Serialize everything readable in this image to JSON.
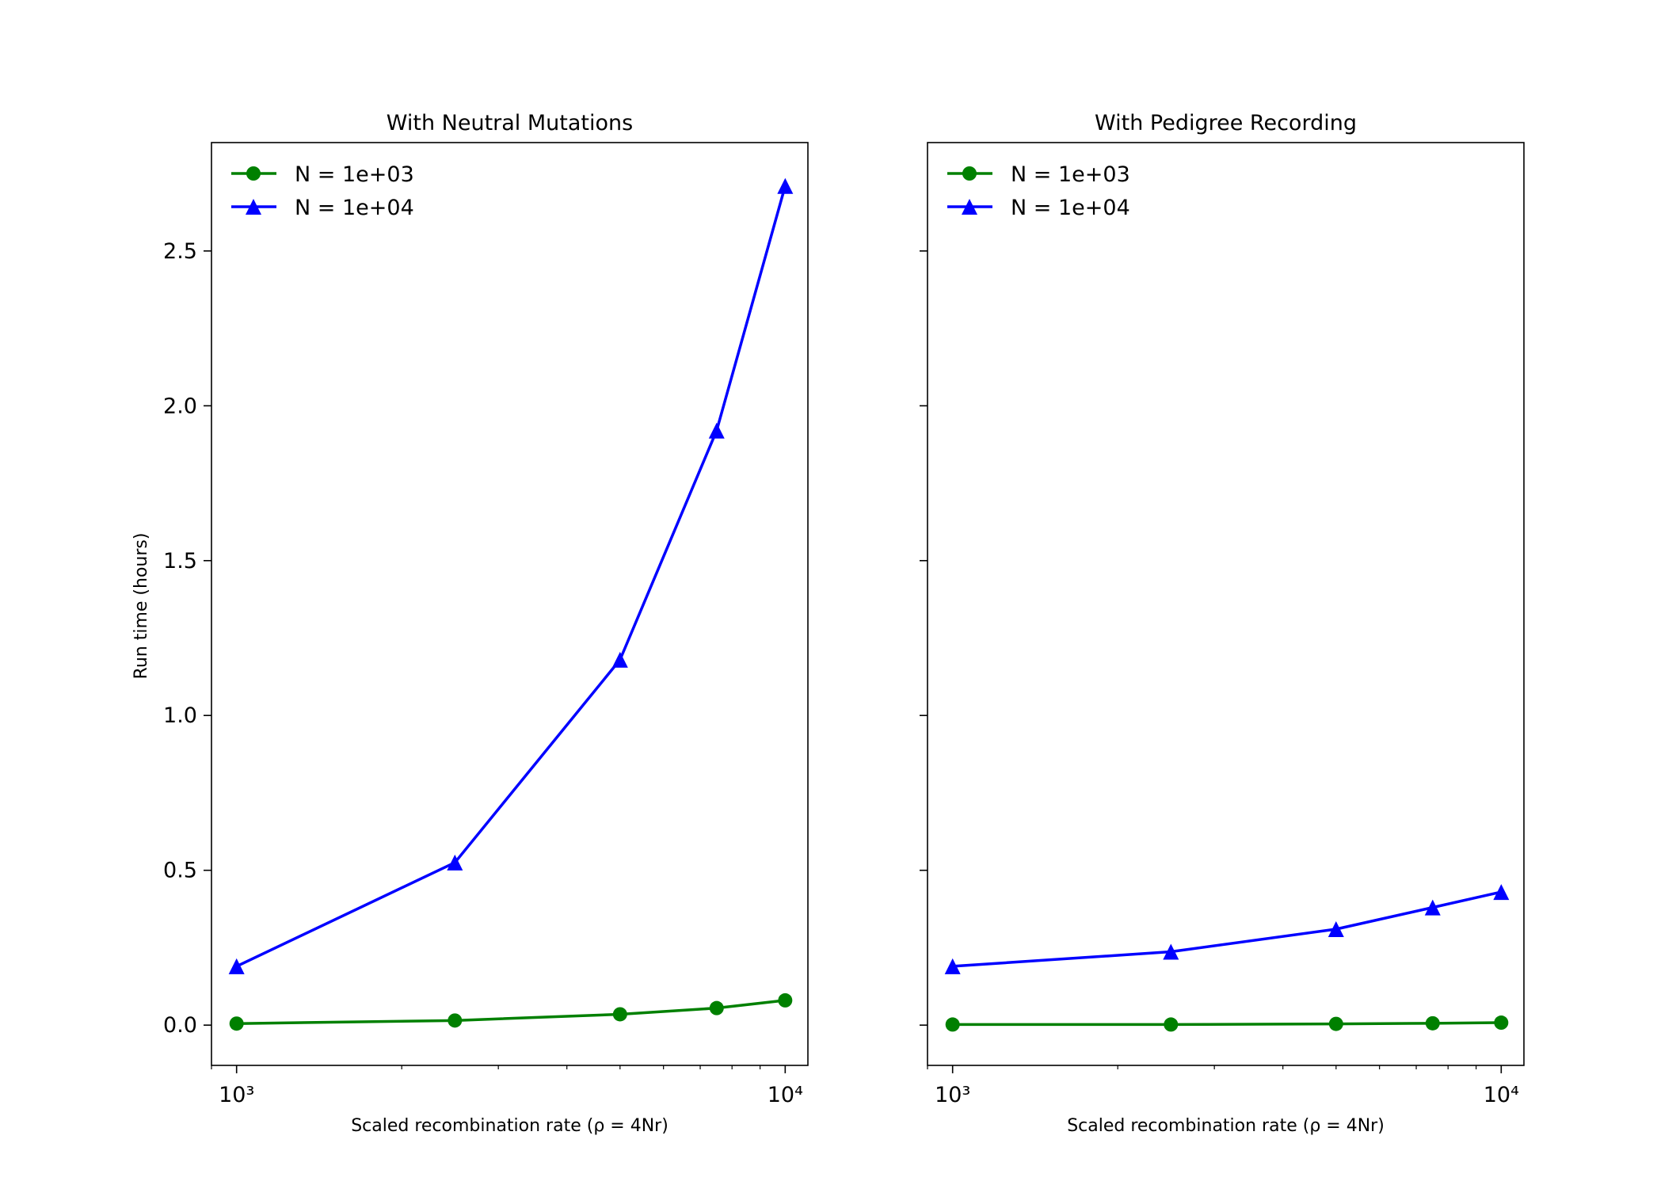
{
  "colors": {
    "n1000": "#008000",
    "n10000": "#0000ff"
  },
  "ylabel": "Run time (hours)",
  "chart_data": [
    {
      "type": "line",
      "title": "With Neutral Mutations",
      "xlabel": "Scaled recombination rate (ρ = 4Nr)",
      "ylabel": "Run time (hours)",
      "xscale": "log",
      "xlim": [
        900,
        11000
      ],
      "ylim": [
        -0.13,
        2.85
      ],
      "x_ticks": [
        "10³",
        "10⁴"
      ],
      "y_ticks": [
        "0.0",
        "0.5",
        "1.0",
        "1.5",
        "2.0",
        "2.5"
      ],
      "grid": false,
      "legend": "upper-left",
      "x": [
        1000,
        2500,
        5000,
        7500,
        10000
      ],
      "series": [
        {
          "name": "N = 1e+03",
          "marker": "circle",
          "color": "#008000",
          "values": [
            0.005,
            0.015,
            0.035,
            0.055,
            0.08
          ]
        },
        {
          "name": "N = 1e+04",
          "marker": "triangle",
          "color": "#0000ff",
          "values": [
            0.19,
            0.525,
            1.18,
            1.92,
            2.71
          ]
        }
      ]
    },
    {
      "type": "line",
      "title": "With Pedigree Recording",
      "xlabel": "Scaled recombination rate (ρ = 4Nr)",
      "ylabel": "",
      "xscale": "log",
      "xlim": [
        900,
        11000
      ],
      "ylim": [
        -0.13,
        2.85
      ],
      "x_ticks": [
        "10³",
        "10⁴"
      ],
      "y_ticks": [],
      "grid": false,
      "legend": "upper-left",
      "x": [
        1000,
        2500,
        5000,
        7500,
        10000
      ],
      "series": [
        {
          "name": "N = 1e+03",
          "marker": "circle",
          "color": "#008000",
          "values": [
            0.002,
            0.002,
            0.004,
            0.006,
            0.008
          ]
        },
        {
          "name": "N = 1e+04",
          "marker": "triangle",
          "color": "#0000ff",
          "values": [
            0.19,
            0.237,
            0.31,
            0.38,
            0.43
          ]
        }
      ]
    }
  ]
}
